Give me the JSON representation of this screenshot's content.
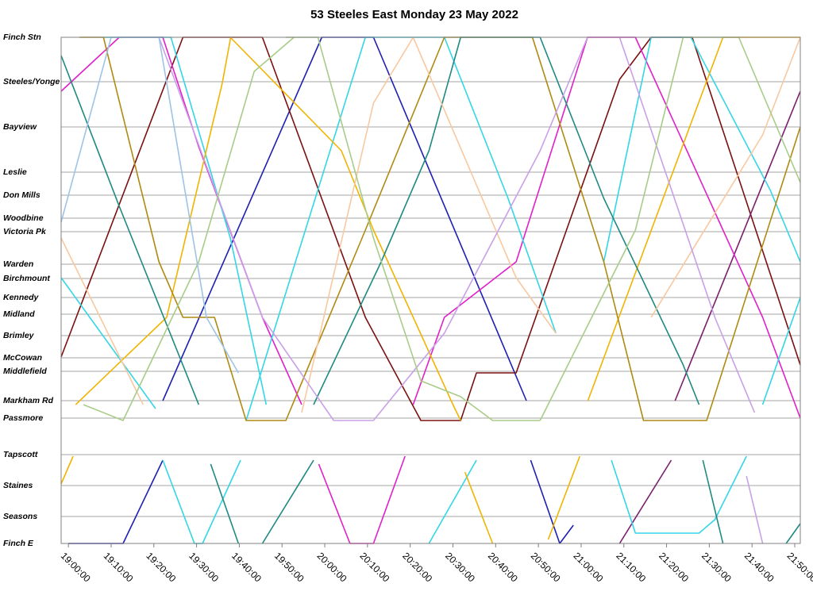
{
  "chart_data": {
    "type": "line",
    "title": "53 Steeles East Monday 23 May 2022",
    "xlim": [
      -1.7,
      171.3
    ],
    "xticks": [
      {
        "value": 0,
        "label": "19:00:00"
      },
      {
        "value": 10,
        "label": "19:10:00"
      },
      {
        "value": 20,
        "label": "19:20:00"
      },
      {
        "value": 30,
        "label": "19:30:00"
      },
      {
        "value": 40,
        "label": "19:40:00"
      },
      {
        "value": 50,
        "label": "19:50:00"
      },
      {
        "value": 60,
        "label": "20:00:00"
      },
      {
        "value": 70,
        "label": "20:10:00"
      },
      {
        "value": 80,
        "label": "20:20:00"
      },
      {
        "value": 90,
        "label": "20:30:00"
      },
      {
        "value": 100,
        "label": "20:40:00"
      },
      {
        "value": 110,
        "label": "20:50:00"
      },
      {
        "value": 120,
        "label": "21:00:00"
      },
      {
        "value": 130,
        "label": "21:10:00"
      },
      {
        "value": 140,
        "label": "21:20:00"
      },
      {
        "value": 150,
        "label": "21:30:00"
      },
      {
        "value": 160,
        "label": "21:40:00"
      },
      {
        "value": 170,
        "label": "21:50:00"
      }
    ],
    "ylim": [
      0,
      638
    ],
    "yticks": [
      {
        "value": 638,
        "label": "Finch Stn"
      },
      {
        "value": 582,
        "label": "Steeles/Yonge"
      },
      {
        "value": 525,
        "label": "Bayview"
      },
      {
        "value": 468,
        "label": "Leslie"
      },
      {
        "value": 439,
        "label": "Don Mills"
      },
      {
        "value": 410,
        "label": "Woodbine"
      },
      {
        "value": 393,
        "label": "Victoria Pk"
      },
      {
        "value": 352,
        "label": "Warden"
      },
      {
        "value": 334,
        "label": "Birchmount"
      },
      {
        "value": 310,
        "label": "Kennedy"
      },
      {
        "value": 289,
        "label": "Midland"
      },
      {
        "value": 262,
        "label": "Brimley"
      },
      {
        "value": 234,
        "label": "McCowan"
      },
      {
        "value": 217,
        "label": "Middlefield"
      },
      {
        "value": 180,
        "label": "Markham Rd"
      },
      {
        "value": 158,
        "label": "Passmore"
      },
      {
        "value": 112,
        "label": "Tapscott"
      },
      {
        "value": 73,
        "label": "Staines"
      },
      {
        "value": 34,
        "label": "Seasons"
      },
      {
        "value": 0,
        "label": "Finch E"
      }
    ],
    "grid": true,
    "series": [
      {
        "color": "#1f1fb4",
        "x": [
          22.1,
          59.3,
          71.4,
          107.2
        ],
        "values": [
          180,
          638,
          638,
          180
        ]
      },
      {
        "color": "#1f1fb4",
        "x": [
          0,
          12.8,
          22.1
        ],
        "values": [
          0,
          0,
          105
        ]
      },
      {
        "color": "#1f1fb4",
        "x": [
          108.2,
          115,
          118.2
        ],
        "values": [
          105,
          0,
          23
        ]
      },
      {
        "color": "#7b1010",
        "x": [
          -1.7,
          26.8,
          45.4,
          69.5,
          82.5,
          91.8,
          95.5,
          104.8,
          129,
          136.4,
          146,
          171.3
        ],
        "values": [
          235,
          638,
          638,
          285,
          155,
          155,
          215,
          215,
          585,
          638,
          638,
          225
        ]
      },
      {
        "color": "#7a1f6e",
        "x": [
          129,
          141.1
        ],
        "values": [
          0,
          105
        ]
      },
      {
        "color": "#7a1f6e",
        "x": [
          142,
          171.3
        ],
        "values": [
          180,
          570
        ]
      },
      {
        "color": "#e020c8",
        "x": [
          -1.7,
          11.9,
          22.1,
          30.5,
          45.4,
          54.6
        ],
        "values": [
          570,
          638,
          638,
          500,
          285,
          175
        ]
      },
      {
        "color": "#e020c8",
        "x": [
          58.6,
          65.9,
          71.4,
          78.8
        ],
        "values": [
          100,
          0,
          0,
          110
        ]
      },
      {
        "color": "#e020c8",
        "x": [
          80.7,
          88,
          104.8,
          121.5,
          132.7,
          162.5,
          171.3
        ],
        "values": [
          175,
          285,
          355,
          638,
          638,
          285,
          158
        ]
      },
      {
        "color": "#33d6e6",
        "x": [
          -1.7,
          20.4
        ],
        "values": [
          335,
          170
        ]
      },
      {
        "color": "#33d6e6",
        "x": [
          22.1,
          29.5,
          31.4,
          40.3
        ],
        "values": [
          105,
          0,
          0,
          105
        ]
      },
      {
        "color": "#33d6e6",
        "x": [
          8.2,
          24,
          37.9,
          46.3
        ],
        "values": [
          638,
          638,
          385,
          175
        ]
      },
      {
        "color": "#33d6e6",
        "x": [
          41.6,
          69.5,
          88,
          102.9,
          114.1
        ],
        "values": [
          155,
          638,
          638,
          435,
          265
        ]
      },
      {
        "color": "#33d6e6",
        "x": [
          125.3,
          136.4,
          145.7,
          164.3,
          171.3
        ],
        "values": [
          355,
          638,
          638,
          445,
          355
        ]
      },
      {
        "color": "#33d6e6",
        "x": [
          127.1,
          132.7,
          147.6,
          151.3,
          158.7
        ],
        "values": [
          105,
          13,
          13,
          30,
          110
        ]
      },
      {
        "color": "#33d6e6",
        "x": [
          84.4,
          95.5
        ],
        "values": [
          0,
          105
        ]
      },
      {
        "color": "#33d6e6",
        "x": [
          162.5,
          171.3
        ],
        "values": [
          175,
          310
        ]
      },
      {
        "color": "#f0b400",
        "x": [
          -1.7,
          1.1
        ],
        "values": [
          75,
          110
        ]
      },
      {
        "color": "#f0b400",
        "x": [
          1.7,
          23,
          36,
          38
        ],
        "values": [
          175,
          285,
          580,
          638
        ]
      },
      {
        "color": "#f0b400",
        "x": [
          37.9,
          63.9,
          71.4,
          90,
          91.8
        ],
        "values": [
          638,
          495,
          395,
          175,
          155
        ]
      },
      {
        "color": "#f0b400",
        "x": [
          92.8,
          99.3
        ],
        "values": [
          90,
          0
        ]
      },
      {
        "color": "#f0b400",
        "x": [
          112.3,
          119.7
        ],
        "values": [
          5,
          110
        ]
      },
      {
        "color": "#f0b400",
        "x": [
          121.6,
          153.2,
          171.3
        ],
        "values": [
          180,
          638,
          638
        ]
      },
      {
        "color": "#b08a10",
        "x": [
          2.6,
          8.2,
          21.2,
          26.8,
          34.2,
          41.6,
          50.9,
          69.5,
          88,
          108.6,
          125.3,
          134.6,
          149.4,
          171.3
        ],
        "values": [
          638,
          638,
          355,
          285,
          285,
          155,
          155,
          395,
          638,
          638,
          355,
          155,
          155,
          525
        ]
      },
      {
        "color": "#1f8a80",
        "x": [
          -1.7,
          11.9,
          30.5
        ],
        "values": [
          615,
          425,
          175
        ]
      },
      {
        "color": "#1f8a80",
        "x": [
          33.3,
          39.8
        ],
        "values": [
          100,
          0
        ]
      },
      {
        "color": "#1f8a80",
        "x": [
          45.4,
          57.4
        ],
        "values": [
          0,
          105
        ]
      },
      {
        "color": "#1f8a80",
        "x": [
          57.4,
          73.2,
          84.4,
          91.8,
          110.4,
          125.3,
          143.9,
          147.6
        ],
        "values": [
          175,
          355,
          495,
          638,
          638,
          435,
          225,
          175
        ]
      },
      {
        "color": "#1f8a80",
        "x": [
          148.5,
          153.2
        ],
        "values": [
          105,
          0
        ]
      },
      {
        "color": "#1f8a80",
        "x": [
          168,
          171.3
        ],
        "values": [
          0,
          25
        ]
      },
      {
        "color": "#f8c8a0",
        "x": [
          -1.7,
          17.5
        ],
        "values": [
          385,
          175
        ]
      },
      {
        "color": "#f8c8a0",
        "x": [
          54.6,
          71.4,
          80.7
        ],
        "values": [
          165,
          555,
          638
        ]
      },
      {
        "color": "#f8c8a0",
        "x": [
          80.7,
          104.8,
          114.1
        ],
        "values": [
          638,
          335,
          265
        ]
      },
      {
        "color": "#f8c8a0",
        "x": [
          136.4,
          162.5,
          171.3
        ],
        "values": [
          285,
          515,
          638
        ]
      },
      {
        "color": "#c8a0e8",
        "x": [
          21.2,
          45.4,
          62.1,
          71.4
        ],
        "values": [
          638,
          285,
          155,
          155
        ]
      },
      {
        "color": "#c8a0e8",
        "x": [
          71.4,
          88,
          110.4,
          121.5
        ],
        "values": [
          155,
          265,
          495,
          638
        ]
      },
      {
        "color": "#c8a0e8",
        "x": [
          129,
          151.3,
          160.6
        ],
        "values": [
          638,
          285,
          165
        ]
      },
      {
        "color": "#c8a0e8",
        "x": [
          158.7,
          162.5
        ],
        "values": [
          85,
          0
        ]
      },
      {
        "color": "#a8cc88",
        "x": [
          3.5,
          12.8,
          30.5,
          43.5,
          52.8
        ],
        "values": [
          175,
          155,
          355,
          595,
          638
        ]
      },
      {
        "color": "#a8cc88",
        "x": [
          50.9,
          58.4,
          71.4,
          82.5,
          91.8,
          99.3,
          110.4
        ],
        "values": [
          638,
          638,
          385,
          205,
          185,
          155,
          155
        ]
      },
      {
        "color": "#a8cc88",
        "x": [
          110.4,
          132.7,
          143.9,
          156.9,
          171.3
        ],
        "values": [
          155,
          395,
          638,
          638,
          455
        ]
      },
      {
        "color": "#9dc3e6",
        "x": [
          -1.7,
          10,
          21.2,
          32.3,
          39.8
        ],
        "values": [
          405,
          638,
          638,
          285,
          215
        ]
      }
    ]
  }
}
